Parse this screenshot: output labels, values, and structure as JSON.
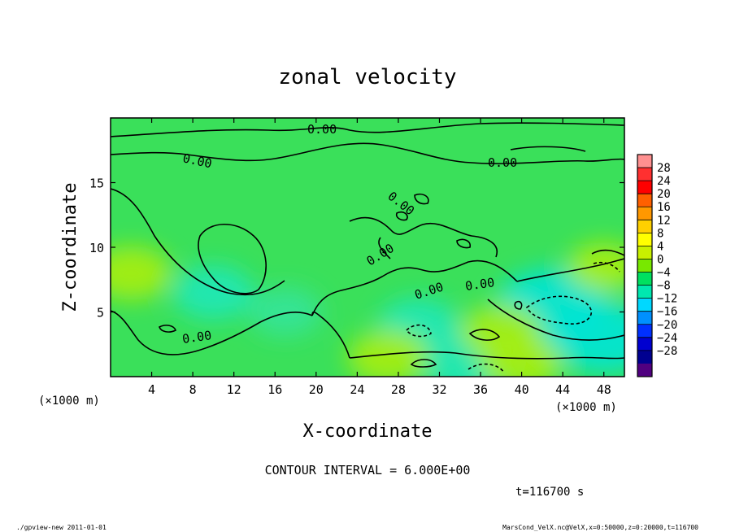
{
  "chart_data": {
    "type": "heatmap",
    "title": "zonal velocity",
    "xlabel": "X-coordinate",
    "ylabel": "Z-coordinate",
    "x_unit_left": "(×1000 m)",
    "x_unit_right": "(×1000 m)",
    "xlim": [
      0,
      50
    ],
    "ylim": [
      0,
      20
    ],
    "x_ticks": [
      4,
      8,
      12,
      16,
      20,
      24,
      28,
      32,
      36,
      40,
      44,
      48
    ],
    "y_ticks": [
      5,
      10,
      15
    ],
    "contour_interval_text": "CONTOUR INTERVAL = 6.000E+00",
    "time_text": "t=116700 s",
    "contour_labels": [
      "0.00",
      "0.00",
      "0.00",
      "0.00",
      "0.00",
      "0.00",
      "0.00",
      "0.00"
    ],
    "colorbar": {
      "levels": [
        28,
        24,
        20,
        16,
        12,
        8,
        4,
        0,
        -4,
        -8,
        -12,
        -16,
        -20,
        -24,
        -28
      ],
      "colors": [
        "#ff9090",
        "#ff3030",
        "#ff0000",
        "#ff6000",
        "#ff9800",
        "#ffd000",
        "#ffff00",
        "#c8f000",
        "#78e800",
        "#00e060",
        "#00e8b0",
        "#00d8ff",
        "#0090ff",
        "#0030ff",
        "#0000d0",
        "#000090",
        "#500080"
      ]
    },
    "field_features": [
      {
        "x": 2,
        "z": 8,
        "value": 6,
        "kind": "positive"
      },
      {
        "x": 10,
        "z": 6.5,
        "value": -6,
        "kind": "negative"
      },
      {
        "x": 17,
        "z": 5,
        "value": -5,
        "kind": "negative"
      },
      {
        "x": 30,
        "z": 4,
        "value": -6,
        "kind": "negative"
      },
      {
        "x": 35,
        "z": 1,
        "value": -8,
        "kind": "negative"
      },
      {
        "x": 43,
        "z": 5.5,
        "value": -10,
        "kind": "negative"
      },
      {
        "x": 48,
        "z": 3,
        "value": -9,
        "kind": "negative"
      },
      {
        "x": 38,
        "z": 3.5,
        "value": 6,
        "kind": "positive"
      },
      {
        "x": 27,
        "z": 1.5,
        "value": 6,
        "kind": "positive"
      },
      {
        "x": 48,
        "z": 8.5,
        "value": 5,
        "kind": "positive"
      },
      {
        "x": 40,
        "z": 1,
        "value": 6,
        "kind": "positive"
      }
    ]
  },
  "footer": {
    "left": "./gpview-new  2011-01-01",
    "right": "MarsCond_VelX.nc@VelX,x=0:50000,z=0:20000,t=116700"
  }
}
